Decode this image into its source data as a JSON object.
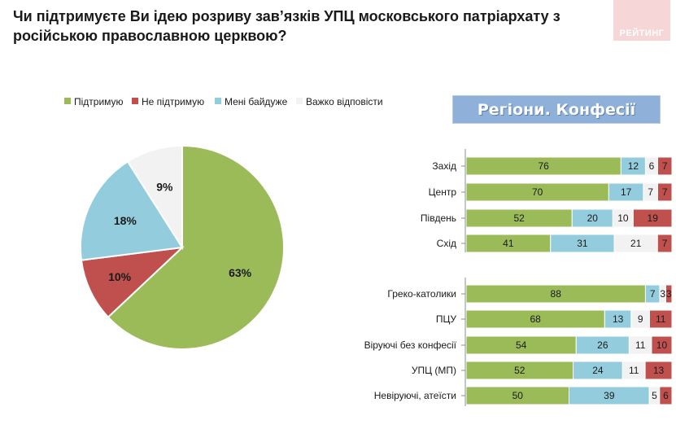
{
  "header": {
    "title": "Чи підтримуєте Ви ідею розриву зав’язків УПЦ московського патріархату з російською православною церквою?",
    "brand": "РЕЙТИНГ"
  },
  "section_header": "Регіони. Конфесії",
  "colors": {
    "support": "#9bbb59",
    "not_support": "#c0504d",
    "indifferent": "#93cddd",
    "hard": "#f2f2f2"
  },
  "chart_data": [
    {
      "type": "pie",
      "title": "",
      "legend_position": "top",
      "series": [
        {
          "name": "Підтримую",
          "value": 63,
          "label": "63%"
        },
        {
          "name": "Не підтримую",
          "value": 10,
          "label": "10%"
        },
        {
          "name": "Мені байдуже",
          "value": 18,
          "label": "18%"
        },
        {
          "name": "Важко відповісти",
          "value": 9,
          "label": "9%"
        }
      ]
    },
    {
      "type": "bar",
      "orientation": "horizontal",
      "stacked": true,
      "xlim": [
        0,
        100
      ],
      "series_names": [
        "Підтримую",
        "Мені байдуже",
        "Важко відповісти",
        "Не підтримую"
      ],
      "groups": [
        {
          "categories": [
            {
              "label": "Захід",
              "values": [
                76,
                12,
                6,
                7
              ]
            },
            {
              "label": "Центр",
              "values": [
                70,
                17,
                7,
                7
              ]
            },
            {
              "label": "Південь",
              "values": [
                52,
                20,
                10,
                19
              ]
            },
            {
              "label": "Схід",
              "values": [
                41,
                31,
                21,
                7
              ]
            }
          ]
        },
        {
          "categories": [
            {
              "label": "Греко-католики",
              "values": [
                88,
                7,
                3,
                3
              ]
            },
            {
              "label": "ПЦУ",
              "values": [
                68,
                13,
                9,
                11
              ]
            },
            {
              "label": "Віруючі без конфесії",
              "values": [
                54,
                26,
                11,
                10
              ]
            },
            {
              "label": "УПЦ (МП)",
              "values": [
                52,
                24,
                11,
                13
              ]
            },
            {
              "label": "Невіруючі, атеїсти",
              "values": [
                50,
                39,
                5,
                6
              ]
            }
          ]
        }
      ]
    }
  ]
}
